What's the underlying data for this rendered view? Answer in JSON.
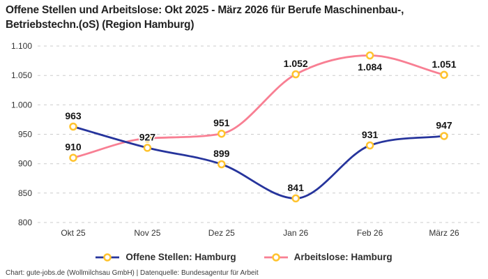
{
  "title": "Offene Stellen und Arbeitslose: Okt 2025 - März 2026 für Berufe Maschinenbau-, Betriebstechn.(oS) (Region Hamburg)",
  "footer": {
    "text": "Chart: gute-jobs.de (Wollmilchsau GmbH) | Datenquelle: Bundesagentur für Arbeit"
  },
  "colors": {
    "offene_stellen_line": "#26349c",
    "arbeitslose_line": "#f87f93",
    "marker_ring": "#ffc32e",
    "marker_fill": "#ffffff",
    "gridline": "#cccccc",
    "label_text": "#141414",
    "axis_text": "#333333"
  },
  "chart_data": {
    "type": "line",
    "curve": "monotone",
    "grid": "horizontal-dashed",
    "legend_position": "bottom",
    "ylim": [
      800,
      1100
    ],
    "categories": [
      "Okt 25",
      "Nov 25",
      "Dez 25",
      "Jan 26",
      "Feb 26",
      "März 26"
    ],
    "yticks": [
      {
        "value": 1100,
        "label": "1.100"
      },
      {
        "value": 1050,
        "label": "1.050"
      },
      {
        "value": 1000,
        "label": "1.000"
      },
      {
        "value": 950,
        "label": "950"
      },
      {
        "value": 900,
        "label": "900"
      },
      {
        "value": 850,
        "label": "850"
      },
      {
        "value": 800,
        "label": "800"
      }
    ],
    "series": [
      {
        "name": "Offene Stellen: Hamburg",
        "color": "#26349c",
        "values": [
          963,
          927,
          899,
          841,
          931,
          947
        ],
        "labels": [
          "963",
          "927",
          "899",
          "841",
          "931",
          "947"
        ],
        "label_placement": [
          "above",
          "above",
          "above",
          "above",
          "above",
          "above"
        ]
      },
      {
        "name": "Arbeitslose: Hamburg",
        "color": "#f87f93",
        "values": [
          910,
          943,
          951,
          1052,
          1084,
          1051
        ],
        "labels": [
          "910",
          null,
          "951",
          "1.052",
          "1.084",
          "1.051"
        ],
        "label_placement": [
          "above",
          "above",
          "above",
          "above",
          "below",
          "above"
        ]
      }
    ],
    "marker": {
      "fill": "#ffffff",
      "stroke": "#ffc32e"
    }
  }
}
